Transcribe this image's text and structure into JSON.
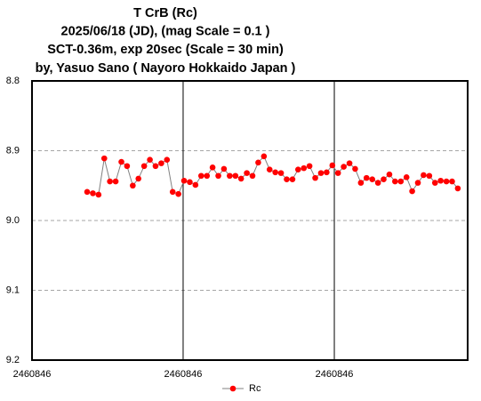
{
  "chart_data": {
    "type": "line",
    "title": [
      "T CrB  (Rc)",
      "2025/06/18 (JD),   (mag Scale = 0.1 )",
      "SCT-0.36m, exp 20sec (Scale = 30 min)",
      "by, Yasuo Sano ( Nayoro Hokkaido Japan )"
    ],
    "x": [
      2460846.0076,
      2460846.00839,
      2460846.00917,
      2460846.00996,
      2460846.01074,
      2460846.01153,
      2460846.01232,
      2460846.0131,
      2460846.01389,
      2460846.01467,
      2460846.01546,
      2460846.01625,
      2460846.01703,
      2460846.01782,
      2460846.0186,
      2460846.01939,
      2460846.02018,
      2460846.02096,
      2460846.02175,
      2460846.02253,
      2460846.02332,
      2460846.02411,
      2460846.02489,
      2460846.02568,
      2460846.02646,
      2460846.02725,
      2460846.02804,
      2460846.02882,
      2460846.02961,
      2460846.03039,
      2460846.03118,
      2460846.03197,
      2460846.03275,
      2460846.03354,
      2460846.03432,
      2460846.03511,
      2460846.0359,
      2460846.03668,
      2460846.03747,
      2460846.03825,
      2460846.03904,
      2460846.03983,
      2460846.04061,
      2460846.0414,
      2460846.04218,
      2460846.04297,
      2460846.04376,
      2460846.04454,
      2460846.04533,
      2460846.04611,
      2460846.0469,
      2460846.04769,
      2460846.04847,
      2460846.04926,
      2460846.05004,
      2460846.05083,
      2460846.05162,
      2460846.0524,
      2460846.05319,
      2460846.05397,
      2460846.05476,
      2460846.05555,
      2460846.05633,
      2460846.05712,
      2460846.0579,
      2460846.05869
    ],
    "series": [
      {
        "name": "Rc",
        "color": "#ff0000",
        "line_color": "#808080",
        "values": [
          8.959,
          8.961,
          8.963,
          8.911,
          8.944,
          8.944,
          8.916,
          8.922,
          8.95,
          8.94,
          8.922,
          8.913,
          8.922,
          8.918,
          8.913,
          8.959,
          8.962,
          8.943,
          8.945,
          8.949,
          8.936,
          8.936,
          8.924,
          8.936,
          8.926,
          8.936,
          8.936,
          8.94,
          8.932,
          8.936,
          8.917,
          8.908,
          8.927,
          8.931,
          8.932,
          8.941,
          8.941,
          8.927,
          8.925,
          8.922,
          8.939,
          8.932,
          8.931,
          8.921,
          8.932,
          8.923,
          8.918,
          8.926,
          8.946,
          8.939,
          8.941,
          8.946,
          8.941,
          8.934,
          8.944,
          8.944,
          8.938,
          8.958,
          8.946,
          8.935,
          8.936,
          8.946,
          8.943,
          8.944,
          8.944,
          8.954
        ]
      }
    ],
    "xlim": [
      2460846.0,
      2460846.06005
    ],
    "xticks": [
      {
        "value": 2460846.0,
        "label": "2460846"
      },
      {
        "value": 2460846.02083,
        "label": "2460846"
      },
      {
        "value": 2460846.04167,
        "label": "2460846"
      }
    ],
    "ylim": [
      9.2,
      8.8
    ],
    "yticks": [
      8.8,
      8.9,
      {
        "value": 9,
        "label": "9.0"
      },
      9.1,
      9.2
    ],
    "grid": true,
    "legend": "bottom"
  }
}
